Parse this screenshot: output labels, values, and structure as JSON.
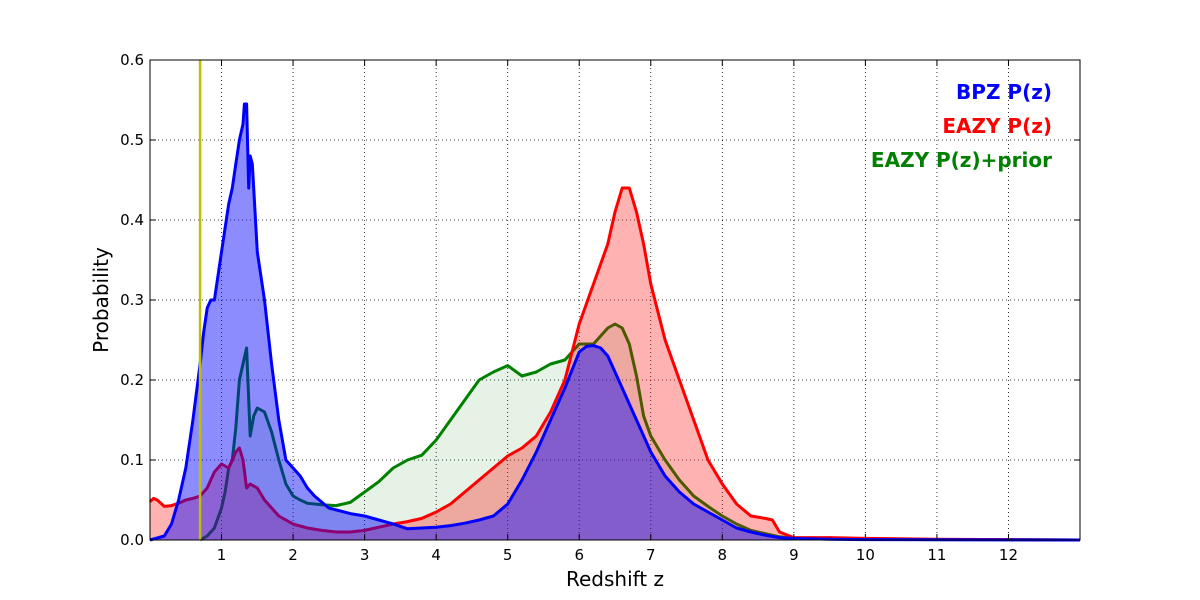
{
  "chart_data": {
    "type": "area",
    "title": "",
    "xlabel": "Redshift z",
    "ylabel": "Probability",
    "xlim": [
      0,
      13
    ],
    "ylim": [
      0,
      0.6
    ],
    "grid": true,
    "legend_position": "top-right",
    "x_ticks": [
      1,
      2,
      3,
      4,
      5,
      6,
      7,
      8,
      9,
      10,
      11,
      12
    ],
    "x_tick_labels": [
      "1",
      "2",
      "3",
      "4",
      "5",
      "6",
      "7",
      "8",
      "9",
      "10",
      "11",
      "12"
    ],
    "y_ticks": [
      0,
      0.1,
      0.2,
      0.3,
      0.4,
      0.5,
      0.6
    ],
    "y_tick_labels": [
      "0.0",
      "0.1",
      "0.2",
      "0.3",
      "0.4",
      "0.5",
      "0.6"
    ],
    "vertical_line": {
      "x": 0.7,
      "color": "#bfbf00"
    },
    "series": [
      {
        "name": "EAZY P(z)+prior",
        "color": "#008000",
        "fill": "#008000",
        "fill_opacity": 0.1,
        "x": [
          0.7,
          0.8,
          0.9,
          1.0,
          1.05,
          1.1,
          1.15,
          1.2,
          1.25,
          1.3,
          1.35,
          1.4,
          1.45,
          1.5,
          1.6,
          1.7,
          1.8,
          1.9,
          2.0,
          2.1,
          2.2,
          2.4,
          2.6,
          2.8,
          3.0,
          3.2,
          3.4,
          3.6,
          3.8,
          4.0,
          4.2,
          4.4,
          4.6,
          4.8,
          5.0,
          5.2,
          5.4,
          5.6,
          5.8,
          6.0,
          6.2,
          6.4,
          6.5,
          6.6,
          6.7,
          6.8,
          6.9,
          7.0,
          7.2,
          7.4,
          7.6,
          7.8,
          8.0,
          8.2,
          8.4,
          8.6,
          8.8,
          9.0,
          9.5,
          10.0,
          11.0,
          12.0,
          13.0
        ],
        "values": [
          0.0,
          0.005,
          0.015,
          0.04,
          0.06,
          0.09,
          0.1,
          0.14,
          0.2,
          0.22,
          0.24,
          0.13,
          0.155,
          0.165,
          0.16,
          0.135,
          0.1,
          0.07,
          0.055,
          0.05,
          0.046,
          0.044,
          0.043,
          0.047,
          0.06,
          0.073,
          0.09,
          0.1,
          0.106,
          0.125,
          0.15,
          0.175,
          0.2,
          0.21,
          0.218,
          0.205,
          0.21,
          0.22,
          0.225,
          0.245,
          0.245,
          0.265,
          0.27,
          0.265,
          0.245,
          0.205,
          0.155,
          0.13,
          0.1,
          0.075,
          0.055,
          0.042,
          0.03,
          0.02,
          0.012,
          0.008,
          0.004,
          0.002,
          0.0015,
          0.001,
          0.0005,
          0.0002,
          0.0
        ]
      },
      {
        "name": "EAZY P(z)",
        "color": "#ff0000",
        "fill": "#ff0000",
        "fill_opacity": 0.3,
        "x": [
          0.0,
          0.05,
          0.1,
          0.2,
          0.3,
          0.4,
          0.5,
          0.6,
          0.7,
          0.8,
          0.9,
          1.0,
          1.1,
          1.15,
          1.2,
          1.25,
          1.3,
          1.35,
          1.4,
          1.5,
          1.6,
          1.8,
          2.0,
          2.2,
          2.4,
          2.6,
          2.8,
          3.0,
          3.2,
          3.4,
          3.6,
          3.8,
          4.0,
          4.2,
          4.4,
          4.6,
          4.8,
          5.0,
          5.2,
          5.4,
          5.6,
          5.8,
          6.0,
          6.2,
          6.4,
          6.5,
          6.6,
          6.7,
          6.8,
          6.9,
          7.0,
          7.2,
          7.4,
          7.6,
          7.8,
          8.0,
          8.2,
          8.4,
          8.6,
          8.7,
          8.8,
          9.0,
          9.5,
          10.0,
          11.0,
          12.0,
          13.0
        ],
        "values": [
          0.048,
          0.052,
          0.05,
          0.042,
          0.043,
          0.046,
          0.05,
          0.052,
          0.055,
          0.065,
          0.085,
          0.095,
          0.09,
          0.1,
          0.11,
          0.115,
          0.1,
          0.065,
          0.07,
          0.065,
          0.05,
          0.03,
          0.02,
          0.015,
          0.012,
          0.01,
          0.01,
          0.012,
          0.016,
          0.02,
          0.023,
          0.027,
          0.035,
          0.045,
          0.06,
          0.075,
          0.09,
          0.105,
          0.115,
          0.13,
          0.16,
          0.2,
          0.27,
          0.32,
          0.37,
          0.41,
          0.44,
          0.44,
          0.41,
          0.37,
          0.32,
          0.25,
          0.2,
          0.15,
          0.1,
          0.07,
          0.045,
          0.03,
          0.027,
          0.025,
          0.01,
          0.003,
          0.003,
          0.002,
          0.001,
          0.0005,
          0.0
        ]
      },
      {
        "name": "BPZ P(z)",
        "color": "#0000ff",
        "fill": "#0000ff",
        "fill_opacity": 0.45,
        "x": [
          0.0,
          0.2,
          0.3,
          0.4,
          0.5,
          0.6,
          0.7,
          0.75,
          0.8,
          0.85,
          0.9,
          1.0,
          1.1,
          1.15,
          1.2,
          1.25,
          1.3,
          1.32,
          1.35,
          1.38,
          1.4,
          1.43,
          1.45,
          1.5,
          1.6,
          1.7,
          1.8,
          1.9,
          2.0,
          2.1,
          2.2,
          2.3,
          2.5,
          2.8,
          3.0,
          3.2,
          3.4,
          3.6,
          3.8,
          4.0,
          4.2,
          4.4,
          4.6,
          4.8,
          5.0,
          5.2,
          5.4,
          5.6,
          5.8,
          6.0,
          6.1,
          6.2,
          6.3,
          6.4,
          6.6,
          6.8,
          7.0,
          7.2,
          7.4,
          7.6,
          7.8,
          8.0,
          8.2,
          8.4,
          8.6,
          8.8,
          9.0,
          9.5,
          10.0,
          11.0,
          12.0,
          13.0
        ],
        "values": [
          0.0,
          0.005,
          0.02,
          0.05,
          0.09,
          0.15,
          0.22,
          0.26,
          0.29,
          0.3,
          0.3,
          0.36,
          0.42,
          0.44,
          0.47,
          0.5,
          0.52,
          0.545,
          0.545,
          0.44,
          0.48,
          0.47,
          0.44,
          0.36,
          0.3,
          0.22,
          0.15,
          0.1,
          0.09,
          0.08,
          0.065,
          0.055,
          0.04,
          0.033,
          0.03,
          0.025,
          0.02,
          0.014,
          0.015,
          0.016,
          0.018,
          0.021,
          0.025,
          0.03,
          0.045,
          0.075,
          0.11,
          0.15,
          0.19,
          0.235,
          0.242,
          0.243,
          0.24,
          0.23,
          0.19,
          0.15,
          0.11,
          0.08,
          0.06,
          0.045,
          0.035,
          0.025,
          0.015,
          0.01,
          0.006,
          0.003,
          0.002,
          0.001,
          0.0005,
          0.0002,
          0.0001,
          0.0
        ]
      }
    ]
  },
  "legend": [
    {
      "label": "BPZ P(z)",
      "color": "#0000ff"
    },
    {
      "label": "EAZY P(z)",
      "color": "#ff0000"
    },
    {
      "label": "EAZY P(z)+prior",
      "color": "#008000"
    }
  ]
}
